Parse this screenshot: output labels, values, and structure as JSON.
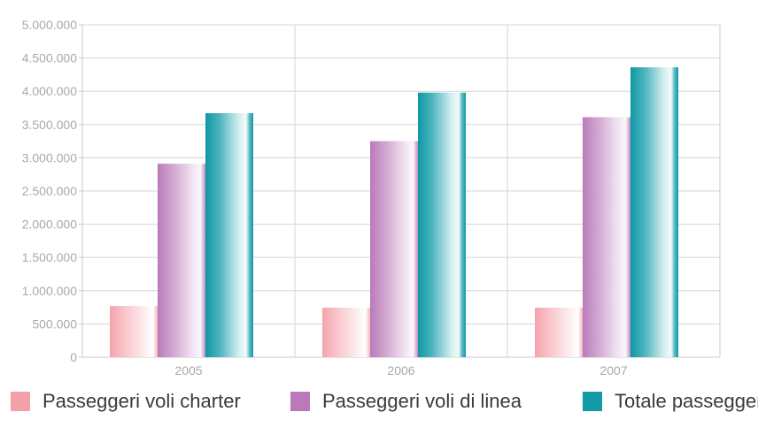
{
  "chart_data": {
    "type": "bar",
    "categories": [
      "2005",
      "2006",
      "2007"
    ],
    "series": [
      {
        "name": "Passeggeri voli charter",
        "values": [
          770000,
          745000,
          745000
        ],
        "color": "#f4a0a8"
      },
      {
        "name": "Passeggeri voli di linea",
        "values": [
          2910000,
          3250000,
          3610000
        ],
        "color": "#b87ab8"
      },
      {
        "name": "Totale passeggeri",
        "values": [
          3670000,
          3980000,
          4360000
        ],
        "color": "#0f9aa6"
      }
    ],
    "ylim": [
      0,
      5000000
    ],
    "yticks": [
      0,
      500000,
      1000000,
      1500000,
      2000000,
      2500000,
      3000000,
      3500000,
      4000000,
      4500000,
      5000000
    ],
    "ytick_labels": [
      "0",
      "500.000",
      "1.000.000",
      "1.500.000",
      "2.000.000",
      "2.500.000",
      "3.000.000",
      "3.500.000",
      "4.000.000",
      "4.500.000",
      "5.000.000"
    ],
    "grid": true,
    "legend_position": "bottom",
    "title": "",
    "xlabel": "",
    "ylabel": ""
  }
}
